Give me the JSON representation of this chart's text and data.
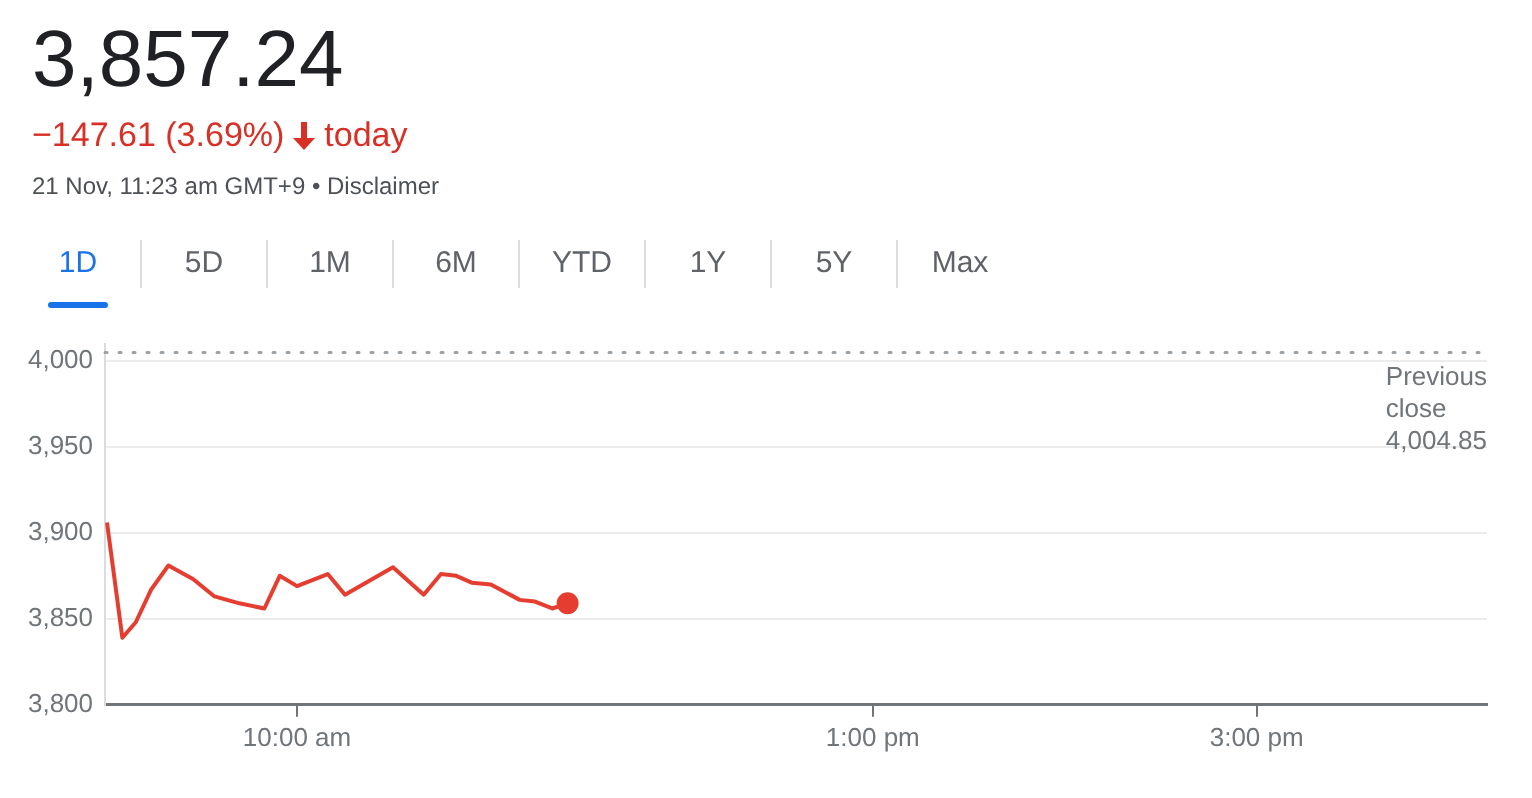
{
  "chart_data": {
    "type": "line",
    "title": "3,857.24",
    "subtitle": "−147.61 (3.69%) today",
    "annotations": [
      "21 Nov, 11:23 am GMT+9 • Disclaimer",
      "1D",
      "5D",
      "1M",
      "6M",
      "YTD",
      "1Y",
      "5Y",
      "Max"
    ],
    "x": [
      9.01,
      9.09,
      9.16,
      9.24,
      9.33,
      9.46,
      9.57,
      9.7,
      9.83,
      9.91,
      10.0,
      10.16,
      10.25,
      10.5,
      10.66,
      10.75,
      10.83,
      10.91,
      11.01,
      11.16,
      11.24,
      11.33,
      11.41
    ],
    "series": [
      {
        "color": "#e53e30",
        "values": [
          3906,
          3839,
          3848,
          3867,
          3881,
          3873,
          3863,
          3859,
          3856,
          3875,
          3869,
          3876,
          3864,
          3880,
          3864,
          3876,
          3875,
          3871,
          3870,
          3861,
          3860,
          3856,
          3859
        ]
      }
    ],
    "xlim": [
      9,
      16.2
    ],
    "xticks": [
      {
        "value": 10,
        "label": "10:00 am"
      },
      {
        "value": 13,
        "label": "1:00 pm"
      },
      {
        "value": 15,
        "label": "3:00 pm"
      }
    ],
    "ylim": [
      3800,
      4010
    ],
    "yticks": [
      {
        "value": 3800,
        "label": "3,800"
      },
      {
        "value": 3850,
        "label": "3,850"
      },
      {
        "value": 3900,
        "label": "3,900"
      },
      {
        "value": 3950,
        "label": "3,950"
      },
      {
        "value": 4000,
        "label": "4,000"
      }
    ],
    "ref_lines": [
      {
        "axis": "y",
        "value": 4004.85,
        "label": "Previous close 4,004.85",
        "line_style": "dotted",
        "color": "#9aa0a6"
      }
    ],
    "grid": "y",
    "legend": false
  }
}
